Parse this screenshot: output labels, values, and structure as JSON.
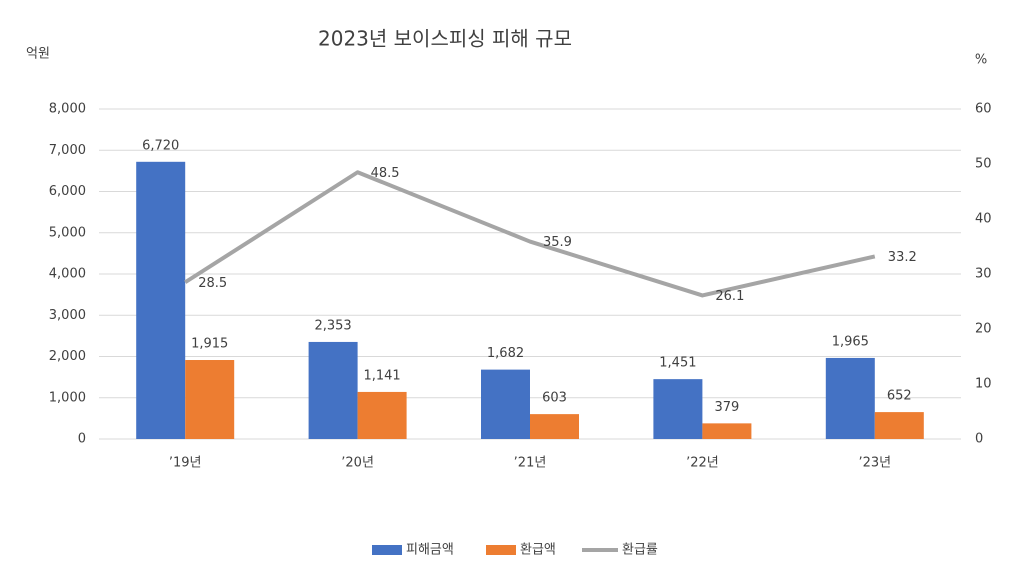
{
  "chart_data": {
    "type": "bar",
    "title": "2023년 보이스피싱 피해 규모",
    "y_label": "억원",
    "y2_label": "%",
    "categories": [
      "’19년",
      "’20년",
      "’21년",
      "’22년",
      "’23년"
    ],
    "series": [
      {
        "name": "피해금액",
        "color": "#4472c4",
        "values": [
          6720,
          2353,
          1682,
          1451,
          1965
        ],
        "value_labels": [
          "6,720",
          "2,353",
          "1,682",
          "1,451",
          "1,965"
        ]
      },
      {
        "name": "환급액",
        "color": "#ed7d31",
        "values": [
          1915,
          1141,
          603,
          379,
          652
        ],
        "value_labels": [
          "1,915",
          "1,141",
          "603",
          "379",
          "652"
        ]
      },
      {
        "name": "환급률",
        "color": "#a5a5a5",
        "type": "line",
        "axis": "y2",
        "values": [
          28.5,
          48.5,
          35.9,
          26.1,
          33.2
        ]
      }
    ],
    "ylim": [
      0,
      8000
    ],
    "yticks": [
      0,
      {
        "value": 1000,
        "label": "1,000"
      },
      {
        "value": 2000,
        "label": "2,000"
      },
      {
        "value": 3000,
        "label": "3,000"
      },
      {
        "value": 4000,
        "label": "4,000"
      },
      {
        "value": 5000,
        "label": "5,000"
      },
      {
        "value": 6000,
        "label": "6,000"
      },
      {
        "value": 7000,
        "label": "7,000"
      },
      {
        "value": 8000,
        "label": "8,000"
      }
    ],
    "y2lim": [
      0,
      60
    ],
    "y2ticks": [
      0,
      10,
      20,
      30,
      40,
      50,
      60
    ],
    "grid": true,
    "legend": "bottom"
  }
}
